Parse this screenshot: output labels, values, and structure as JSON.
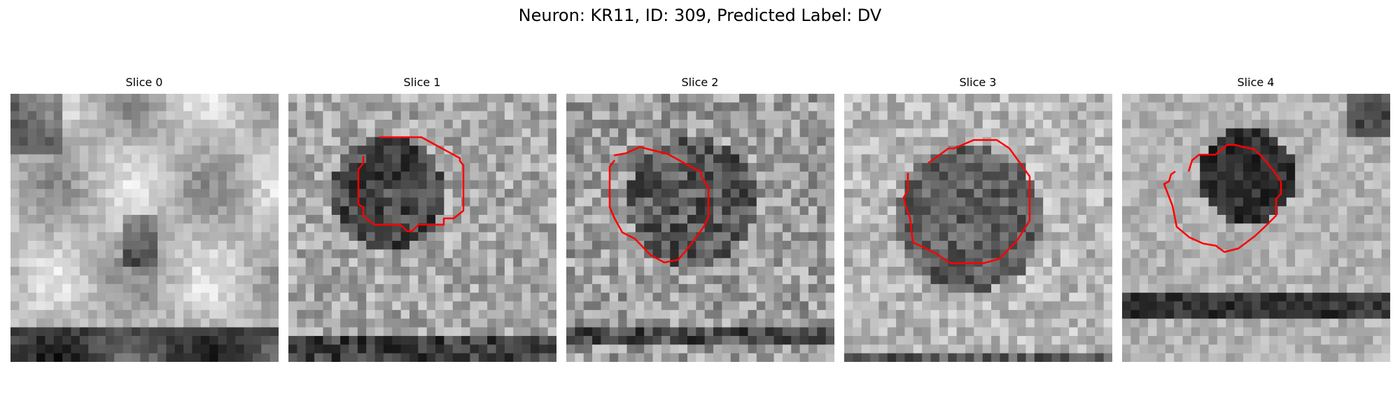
{
  "figure": {
    "title": "Neuron: KR11, ID: 309, Predicted Label: DV"
  },
  "panels": [
    {
      "title": "Slice 0",
      "has_contour": false
    },
    {
      "title": "Slice 1",
      "has_contour": true
    },
    {
      "title": "Slice 2",
      "has_contour": true
    },
    {
      "title": "Slice 3",
      "has_contour": true
    },
    {
      "title": "Slice 4",
      "has_contour": true
    }
  ],
  "colors": {
    "contour": "#ff0000",
    "background": "#ffffff"
  },
  "image": {
    "grid_size": 31,
    "colormap": "gray"
  }
}
